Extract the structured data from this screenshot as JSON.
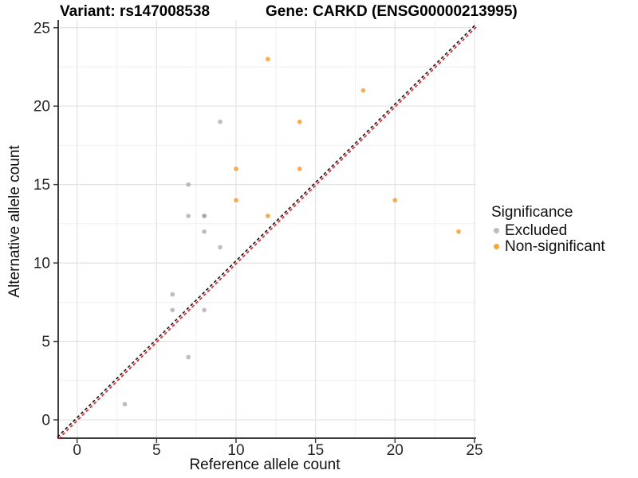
{
  "header": {
    "variant_title": "Variant: rs147008538",
    "gene_title": "Gene: CARKD (ENSG00000213995)"
  },
  "legend": {
    "title": "Significance",
    "items": [
      {
        "label": "Excluded",
        "color": "#BDBDBD"
      },
      {
        "label": "Non-significant",
        "color": "#FBA43C"
      }
    ]
  },
  "chart_data": {
    "type": "scatter",
    "title": "Variant: rs147008538 / Gene: CARKD (ENSG00000213995)",
    "xlabel": "Reference allele count",
    "ylabel": "Alternative allele count",
    "xlim": [
      0,
      25
    ],
    "ylim": [
      0,
      25
    ],
    "x_ticks": [
      0,
      5,
      10,
      15,
      20,
      25
    ],
    "y_ticks": [
      0,
      5,
      10,
      15,
      20,
      25
    ],
    "x_minor_ticks": [
      2.5,
      7.5,
      12.5,
      17.5,
      22.5
    ],
    "y_minor_ticks": [
      2.5,
      7.5,
      12.5,
      17.5,
      22.5
    ],
    "grid": true,
    "legend_position": "right",
    "series": [
      {
        "name": "Excluded",
        "color": "#9A9A9A",
        "opacity": 0.65,
        "points": [
          [
            3,
            1
          ],
          [
            7,
            4
          ],
          [
            6,
            7
          ],
          [
            8,
            7
          ],
          [
            6,
            8
          ],
          [
            9,
            11
          ],
          [
            8,
            12
          ],
          [
            7,
            13
          ],
          [
            8,
            13
          ],
          [
            8,
            13
          ],
          [
            7,
            15
          ],
          [
            9,
            19
          ]
        ]
      },
      {
        "name": "Non-significant",
        "color": "#FCA53E",
        "opacity": 0.95,
        "points": [
          [
            10,
            14
          ],
          [
            10,
            16
          ],
          [
            12,
            13
          ],
          [
            12,
            23
          ],
          [
            14,
            16
          ],
          [
            14,
            19
          ],
          [
            18,
            21
          ],
          [
            20,
            14
          ],
          [
            24,
            12
          ]
        ]
      }
    ],
    "reference_line": {
      "equation": "y = x",
      "style": "dashed",
      "colors": [
        "#141414",
        "#E0262B"
      ]
    },
    "colors": {
      "grid_major": "#E3E3E3",
      "grid_minor": "#F1F1F1",
      "axis_line": "#3C3C3C",
      "tick_label": "#262626"
    }
  }
}
